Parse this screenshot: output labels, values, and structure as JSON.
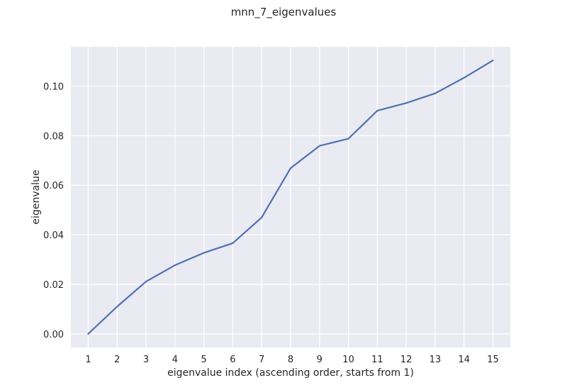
{
  "chart_data": {
    "type": "line",
    "title": "mnn_7_eigenvalues",
    "xlabel": "eigenvalue index (ascending order, starts from 1)",
    "ylabel": "eigenvalue",
    "x": [
      1,
      2,
      3,
      4,
      5,
      6,
      7,
      8,
      9,
      10,
      11,
      12,
      13,
      14,
      15
    ],
    "series": [
      {
        "name": "",
        "values": [
          0.0,
          0.011,
          0.0211,
          0.0277,
          0.0327,
          0.0366,
          0.047,
          0.0669,
          0.0759,
          0.0788,
          0.0901,
          0.0932,
          0.0971,
          0.1034,
          0.1104
        ]
      }
    ],
    "xlim": [
      0.4,
      15.6
    ],
    "ylim": [
      -0.0055,
      0.1159
    ],
    "xticks": [
      "1",
      "2",
      "3",
      "4",
      "5",
      "6",
      "7",
      "8",
      "9",
      "10",
      "11",
      "12",
      "13",
      "14",
      "15"
    ],
    "yticks": [
      "0.00",
      "0.02",
      "0.04",
      "0.06",
      "0.08",
      "0.10"
    ],
    "grid": true,
    "colors": {
      "line": "#4c72b0",
      "background": "#eaeaf2",
      "grid": "#ffffff"
    }
  }
}
